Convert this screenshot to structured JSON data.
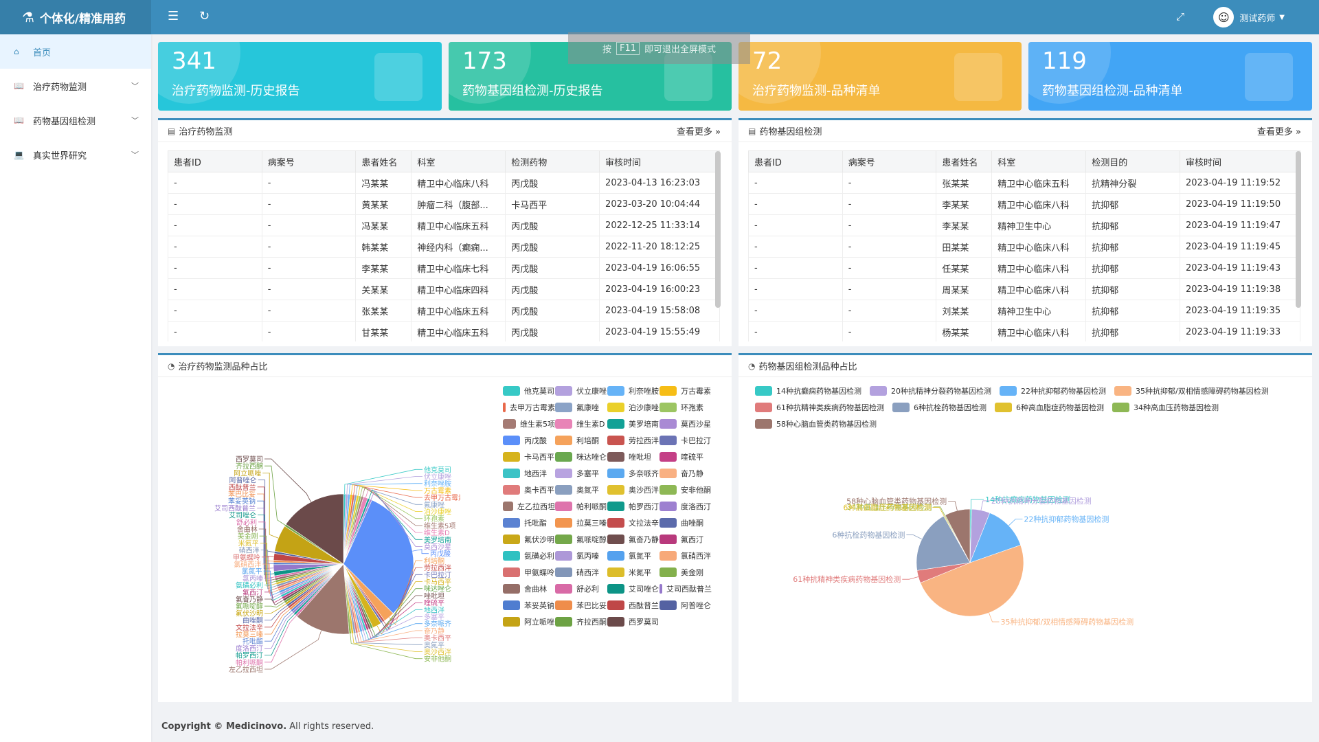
{
  "app": {
    "title": "个体化/精准用药",
    "user": "测试药师"
  },
  "toast": {
    "pre": "按",
    "key": "F11",
    "post": "即可退出全屏模式"
  },
  "sidebar": {
    "items": [
      {
        "label": "首页"
      },
      {
        "label": "治疗药物监测"
      },
      {
        "label": "药物基因组检测"
      },
      {
        "label": "真实世界研究"
      }
    ]
  },
  "cards": [
    {
      "num": "341",
      "label": "治疗药物监测-历史报告",
      "color": "#26c6da"
    },
    {
      "num": "173",
      "label": "药物基因组检测-历史报告",
      "color": "#26c0a0"
    },
    {
      "num": "72",
      "label": "治疗药物监测-品种清单",
      "color": "#f5b942"
    },
    {
      "num": "119",
      "label": "药物基因组检测-品种清单",
      "color": "#42a5f5"
    }
  ],
  "tdm": {
    "title": "治疗药物监测",
    "more": "查看更多 »",
    "headers": [
      "患者ID",
      "病案号",
      "患者姓名",
      "科室",
      "检测药物",
      "审核时间"
    ],
    "rows": [
      [
        "-",
        "-",
        "冯某某",
        "精卫中心临床八科",
        "丙戊酸",
        "2023-04-13 16:23:03"
      ],
      [
        "-",
        "-",
        "黄某某",
        "肿瘤二科（腹部...",
        "卡马西平",
        "2023-03-20 10:04:44"
      ],
      [
        "-",
        "-",
        "冯某某",
        "精卫中心临床五科",
        "丙戊酸",
        "2022-12-25 11:33:14"
      ],
      [
        "-",
        "-",
        "韩某某",
        "神经内科（癫痫...",
        "丙戊酸",
        "2022-11-20 18:12:25"
      ],
      [
        "-",
        "-",
        "李某某",
        "精卫中心临床七科",
        "丙戊酸",
        "2023-04-19 16:06:55"
      ],
      [
        "-",
        "-",
        "关某某",
        "精卫中心临床四科",
        "丙戊酸",
        "2023-04-19 16:00:23"
      ],
      [
        "-",
        "-",
        "张某某",
        "精卫中心临床五科",
        "丙戊酸",
        "2023-04-19 15:58:08"
      ],
      [
        "-",
        "-",
        "甘某某",
        "精卫中心临床五科",
        "丙戊酸",
        "2023-04-19 15:55:49"
      ]
    ]
  },
  "pgx": {
    "title": "药物基因组检测",
    "more": "查看更多 »",
    "headers": [
      "患者ID",
      "病案号",
      "患者姓名",
      "科室",
      "检测目的",
      "审核时间"
    ],
    "rows": [
      [
        "-",
        "-",
        "张某某",
        "精卫中心临床五科",
        "抗精神分裂",
        "2023-04-19 11:19:52"
      ],
      [
        "-",
        "-",
        "李某某",
        "精卫中心临床八科",
        "抗抑郁",
        "2023-04-19 11:19:50"
      ],
      [
        "-",
        "-",
        "李某某",
        "精神卫生中心",
        "抗抑郁",
        "2023-04-19 11:19:47"
      ],
      [
        "-",
        "-",
        "田某某",
        "精卫中心临床八科",
        "抗抑郁",
        "2023-04-19 11:19:45"
      ],
      [
        "-",
        "-",
        "任某某",
        "精卫中心临床八科",
        "抗抑郁",
        "2023-04-19 11:19:43"
      ],
      [
        "-",
        "-",
        "周某某",
        "精卫中心临床八科",
        "抗抑郁",
        "2023-04-19 11:19:38"
      ],
      [
        "-",
        "-",
        "刘某某",
        "精神卫生中心",
        "抗抑郁",
        "2023-04-19 11:19:35"
      ],
      [
        "-",
        "-",
        "杨某某",
        "精卫中心临床八科",
        "抗抑郁",
        "2023-04-19 11:19:33"
      ]
    ]
  },
  "footer": {
    "bold": "Copyright © Medicinovo.",
    "rest": " All rights reserved."
  },
  "chart_data": [
    {
      "type": "pie",
      "title": "治疗药物监测品种占比",
      "labels": [
        "他克莫司",
        "伏立康唑",
        "利奈唑胺",
        "万古霉素",
        "去甲万古霉素",
        "氟康唑",
        "泊沙康唑",
        "环孢素",
        "维生素5项",
        "维生素D",
        "美罗培南",
        "莫西沙星",
        "丙戊酸",
        "利培酮",
        "劳拉西泮",
        "卡巴拉汀",
        "卡马西平",
        "咪达唑仑",
        "唑吡坦",
        "喹硫平",
        "地西泮",
        "多塞平",
        "多奈哌齐",
        "奋乃静",
        "奥卡西平",
        "奥氮平",
        "奥沙西泮",
        "安非他酮",
        "左乙拉西坦",
        "帕利哌酮",
        "帕罗西汀",
        "度洛西汀",
        "托吡酯",
        "拉莫三嗪",
        "文拉法辛",
        "曲唑酮",
        "氟伏沙明",
        "氟哌啶醇",
        "氟奋乃静",
        "氟西汀",
        "氨磺必利",
        "氯丙嗪",
        "氯氮平",
        "氯硝西泮",
        "甲氨蝶呤",
        "硝西泮",
        "米氮平",
        "美金刚",
        "舍曲林",
        "舒必利",
        "艾司唑仑",
        "艾司西酞普兰",
        "苯妥英钠",
        "苯巴比妥",
        "西酞普兰",
        "阿普唑仑",
        "阿立哌唑",
        "齐拉西酮",
        "西罗莫司"
      ],
      "values": [
        1,
        1,
        1,
        1,
        1,
        1,
        1,
        1,
        1,
        2,
        1,
        1,
        60,
        5,
        1,
        1,
        4,
        1,
        1,
        1,
        1,
        1,
        1,
        1,
        1,
        1,
        1,
        1,
        25,
        1,
        1,
        1,
        1,
        1,
        1,
        1,
        1,
        1,
        1,
        1,
        1,
        1,
        1,
        1,
        1,
        1,
        1,
        1,
        1,
        1,
        2,
        3,
        1,
        1,
        3,
        1,
        12,
        1,
        30
      ],
      "colors": [
        "#37c9c6",
        "#b3a1de",
        "#66b3f7",
        "#f6bd16",
        "#e8684a",
        "#8ba3c7",
        "#ead02a",
        "#9cc562",
        "#a57b74",
        "#e884b7",
        "#12a196",
        "#a98ad4",
        "#5b8ff9",
        "#f5a25b",
        "#c9544f",
        "#6b73b5",
        "#d6b31c",
        "#6aa84f",
        "#7d5a5a",
        "#c43f86",
        "#3cc3c6",
        "#b8a3e0",
        "#5ba9f0",
        "#f9b082",
        "#e07b7b",
        "#8a9fbf",
        "#e0c12f",
        "#8eb855",
        "#9c766d",
        "#de74ac",
        "#0f9a8c",
        "#9d80d0",
        "#5b82d2",
        "#f2954f",
        "#c44d4d",
        "#5b6aab",
        "#c9a818",
        "#74a84a",
        "#6f4e4e",
        "#b8397c",
        "#2fc1c1",
        "#ad98d8",
        "#54a1ee",
        "#f7a979",
        "#d97070",
        "#8296b8",
        "#dcbd2a",
        "#83b04c",
        "#956e67",
        "#d86aa6",
        "#0c9486",
        "#9578cb",
        "#4f7dd0",
        "#ef8d4b",
        "#bf4747",
        "#5462a2",
        "#c4a315",
        "#6da244",
        "#6b4a4a"
      ]
    },
    {
      "type": "pie",
      "title": "药物基因组检测品种占比",
      "labels": [
        "14种抗癫痫药物基因检测",
        "20种抗精神分裂药物基因检测",
        "22种抗抑郁药物基因检测",
        "35种抗抑郁/双相情感障碍药物基因检测",
        "61种抗精神类疾病药物基因检测",
        "6种抗栓药物基因检测",
        "6种高血脂症药物基因检测",
        "34种高血压药物基因检测",
        "58种心脑血管类药物基因检测"
      ],
      "values": [
        1,
        10,
        25,
        90,
        7,
        35,
        0.5,
        0.5,
        14
      ],
      "colors": [
        "#37c9c6",
        "#b3a1de",
        "#66b3f7",
        "#f9b482",
        "#e07b7b",
        "#8a9fbf",
        "#e0c12f",
        "#8eb855",
        "#9c766d"
      ]
    }
  ]
}
